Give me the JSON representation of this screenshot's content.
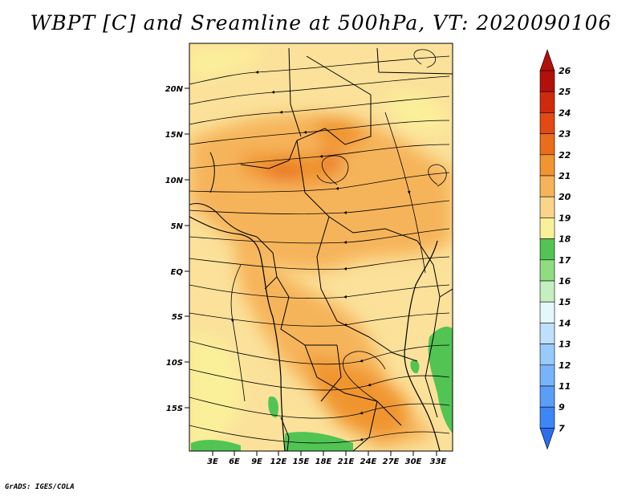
{
  "title": "WBPT [C] and Sreamline at 500hPa, VT: 2020090106",
  "footer": "GrADS: IGES/COLA",
  "map": {
    "lat_labels": [
      "20N",
      "15N",
      "10N",
      "5N",
      "EQ",
      "5S",
      "10S",
      "15S"
    ],
    "lon_labels": [
      "3E",
      "6E",
      "9E",
      "12E",
      "15E",
      "18E",
      "21E",
      "24E",
      "27E",
      "30E",
      "33E"
    ]
  },
  "colorbar": {
    "levels": [
      "7",
      "9",
      "11",
      "12",
      "13",
      "14",
      "15",
      "16",
      "17",
      "18",
      "19",
      "20",
      "21",
      "22",
      "23",
      "24",
      "25",
      "26"
    ],
    "colors": [
      "#2a6ef0",
      "#3d86f5",
      "#5a9ef8",
      "#78b4fa",
      "#98cafc",
      "#bfe0fd",
      "#e6f7fb",
      "#c5efc0",
      "#8fdc82",
      "#52c454",
      "#fbf09a",
      "#fad488",
      "#f6b45a",
      "#f0952f",
      "#ea6d1a",
      "#e24a12",
      "#d02a0c",
      "#b4100a",
      "#920404"
    ],
    "color_low": "#2a6ef0",
    "color_high": "#b4100a"
  }
}
